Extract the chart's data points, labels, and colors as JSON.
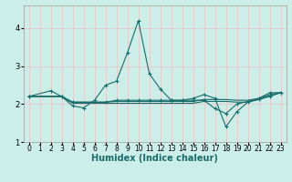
{
  "xlabel": "Humidex (Indice chaleur)",
  "bg_color": "#cceee8",
  "line_color": "#1a6b6b",
  "grid_color": "#e8c8c8",
  "xlim": [
    -0.5,
    23.5
  ],
  "ylim": [
    1.0,
    4.6
  ],
  "yticks": [
    1,
    2,
    3,
    4
  ],
  "xticks": [
    0,
    1,
    2,
    3,
    4,
    5,
    6,
    7,
    8,
    9,
    10,
    11,
    12,
    13,
    14,
    15,
    16,
    17,
    18,
    19,
    20,
    21,
    22,
    23
  ],
  "series_main": [
    [
      0,
      2.2
    ],
    [
      2,
      2.35
    ],
    [
      3,
      2.2
    ],
    [
      4,
      1.95
    ],
    [
      5,
      1.9
    ],
    [
      6,
      2.1
    ],
    [
      7,
      2.5
    ],
    [
      8,
      2.6
    ],
    [
      9,
      3.35
    ],
    [
      10,
      4.2
    ],
    [
      11,
      2.8
    ],
    [
      12,
      2.4
    ],
    [
      13,
      2.1
    ],
    [
      14,
      2.1
    ],
    [
      15,
      2.15
    ],
    [
      16,
      2.25
    ],
    [
      17,
      2.15
    ],
    [
      18,
      1.4
    ],
    [
      19,
      1.8
    ],
    [
      20,
      2.05
    ],
    [
      21,
      2.15
    ],
    [
      22,
      2.3
    ],
    [
      23,
      2.3
    ]
  ],
  "series_flat1": [
    [
      0,
      2.2
    ],
    [
      3,
      2.2
    ],
    [
      4,
      2.05
    ],
    [
      5,
      2.05
    ],
    [
      6,
      2.05
    ],
    [
      7,
      2.05
    ],
    [
      8,
      2.07
    ],
    [
      9,
      2.07
    ],
    [
      10,
      2.07
    ],
    [
      11,
      2.07
    ],
    [
      12,
      2.07
    ],
    [
      13,
      2.07
    ],
    [
      14,
      2.07
    ],
    [
      15,
      2.07
    ],
    [
      16,
      2.12
    ],
    [
      17,
      2.12
    ],
    [
      18,
      2.12
    ],
    [
      19,
      2.1
    ],
    [
      20,
      2.1
    ],
    [
      21,
      2.15
    ],
    [
      22,
      2.25
    ],
    [
      23,
      2.3
    ]
  ],
  "series_flat2": [
    [
      0,
      2.2
    ],
    [
      3,
      2.2
    ],
    [
      4,
      2.05
    ],
    [
      7,
      2.05
    ],
    [
      8,
      2.1
    ],
    [
      9,
      2.1
    ],
    [
      10,
      2.1
    ],
    [
      11,
      2.1
    ],
    [
      12,
      2.1
    ],
    [
      13,
      2.1
    ],
    [
      14,
      2.1
    ],
    [
      15,
      2.1
    ],
    [
      16,
      2.1
    ],
    [
      17,
      1.88
    ],
    [
      18,
      1.75
    ],
    [
      19,
      2.0
    ],
    [
      20,
      2.07
    ],
    [
      21,
      2.12
    ],
    [
      22,
      2.2
    ],
    [
      23,
      2.3
    ]
  ],
  "series_flat3": [
    [
      0,
      2.2
    ],
    [
      3,
      2.2
    ],
    [
      4,
      2.02
    ],
    [
      5,
      2.02
    ],
    [
      6,
      2.02
    ],
    [
      7,
      2.02
    ],
    [
      8,
      2.02
    ],
    [
      9,
      2.02
    ],
    [
      10,
      2.02
    ],
    [
      11,
      2.02
    ],
    [
      12,
      2.02
    ],
    [
      13,
      2.02
    ],
    [
      14,
      2.02
    ],
    [
      15,
      2.02
    ],
    [
      16,
      2.07
    ],
    [
      17,
      2.07
    ],
    [
      18,
      2.07
    ],
    [
      19,
      2.05
    ],
    [
      20,
      2.05
    ],
    [
      21,
      2.12
    ],
    [
      22,
      2.22
    ],
    [
      23,
      2.3
    ]
  ]
}
